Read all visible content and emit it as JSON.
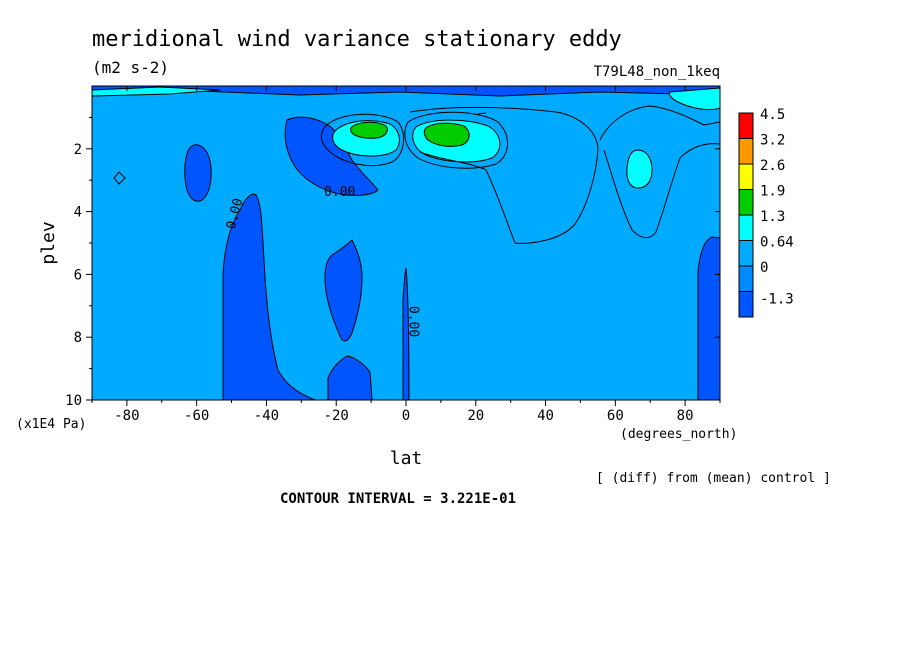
{
  "chart_data": {
    "type": "heatmap",
    "title": "meridional wind variance  stationary eddy",
    "units": "(m2 s-2)",
    "experiment": "T79L48_non_1keq",
    "xlabel": "lat",
    "xunits": "(degrees_north)",
    "ylabel": "plev",
    "yunits": "(x1E4 Pa)",
    "xlim": [
      -90,
      90
    ],
    "ylim": [
      10,
      0
    ],
    "xticks": [
      -80,
      -60,
      -40,
      -20,
      0,
      20,
      40,
      60,
      80
    ],
    "xtick_labels": [
      "-80",
      "-60",
      "-40",
      "-20",
      "0",
      "20",
      "40",
      "60",
      "80"
    ],
    "yticks": [
      2,
      4,
      6,
      8,
      10
    ],
    "ytick_labels": [
      "2",
      "4",
      "6",
      "8",
      "10"
    ],
    "contour_interval": "CONTOUR INTERVAL = 3.221E-01",
    "note": "[ (diff) from (mean) control ]",
    "contour_labels": [
      {
        "text": "0.00",
        "lat": -19,
        "plev": 3.5,
        "rotate": 0
      },
      {
        "text": "0.00",
        "lat": -48,
        "plev": 4.1,
        "rotate": -75
      },
      {
        "text": "0.00",
        "lat": 1,
        "plev": 7.5,
        "rotate": 90
      }
    ],
    "colorbar": {
      "levels": [
        "4.5",
        "3.2",
        "2.6",
        "1.9",
        "1.3",
        "0.64",
        "0",
        "-1.3"
      ],
      "colors": [
        "#ff0000",
        "#ff9900",
        "#ffff00",
        "#00cc00",
        "#00ffff",
        "#00aaff",
        "#0088ff",
        "#0055ff"
      ]
    },
    "fields": {
      "background": "#00aaff",
      "negative_color": "#0055ff",
      "level1_color": "#00ffff",
      "level2_color": "#00cc00"
    }
  }
}
